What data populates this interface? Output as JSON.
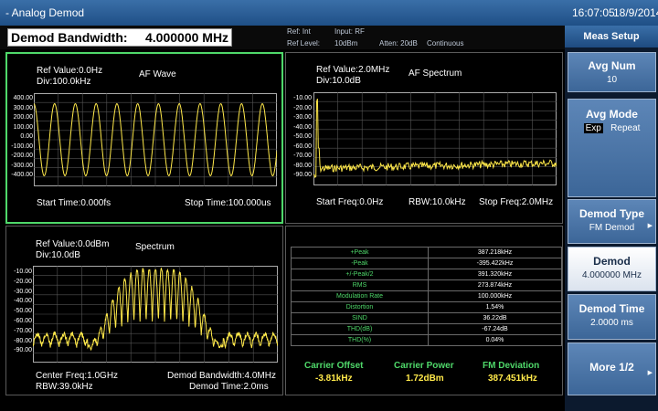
{
  "window": {
    "title": "- Analog Demod",
    "time": "16:07:05",
    "date": "18/9/2014"
  },
  "infobar": {
    "bw_label": "Demod Bandwidth:",
    "bw_value": "4.000000 MHz",
    "ref": "Ref: Int",
    "input": "Input: RF",
    "ref_level_label": "Ref Level:",
    "ref_level_value": "10dBm",
    "atten": "Atten: 20dB",
    "mode": "Continuous"
  },
  "af_wave": {
    "ref": "Ref Value:0.0Hz",
    "div": "Div:100.0kHz",
    "title": "AF Wave",
    "yticks": [
      "400.00",
      "300.00",
      "200.00",
      "100.00",
      "0.00",
      "-100.00",
      "-200.00",
      "-300.00",
      "-400.00"
    ],
    "start": "Start Time:0.000fs",
    "stop": "Stop Time:100.000us",
    "trace": {
      "amplitude_khz": 387,
      "cycles": 11.7
    }
  },
  "af_spectrum": {
    "ref": "Ref Value:2.0MHz",
    "div": "Div:10.0dB",
    "title": "AF Spectrum",
    "yticks": [
      "-10.00",
      "-20.00",
      "-30.00",
      "-40.00",
      "-50.00",
      "-60.00",
      "-70.00",
      "-80.00",
      "-90.00"
    ],
    "start": "Start Freq:0.0Hz",
    "rbw": "RBW:10.0kHz",
    "stop": "Stop Freq:2.0MHz"
  },
  "spectrum": {
    "ref": "Ref Value:0.0dBm",
    "div": "Div:10.0dB",
    "title": "Spectrum",
    "yticks": [
      "-10.00",
      "-20.00",
      "-30.00",
      "-40.00",
      "-50.00",
      "-60.00",
      "-70.00",
      "-80.00",
      "-90.00"
    ],
    "center": "Center Freq:1.0GHz",
    "rbw": "RBW:39.0kHz",
    "demod_bw": "Demod Bandwidth:4.0MHz",
    "demod_time": "Demod Time:2.0ms"
  },
  "measurements": [
    {
      "name": "+Peak",
      "value": "387.218kHz"
    },
    {
      "name": "-Peak",
      "value": "-395.422kHz"
    },
    {
      "name": "+/-Peak/2",
      "value": "391.320kHz"
    },
    {
      "name": "RMS",
      "value": "273.874kHz"
    },
    {
      "name": "Modulation Rate",
      "value": "100.000kHz"
    },
    {
      "name": "Distortion",
      "value": "1.54%"
    },
    {
      "name": "SIND",
      "value": "36.22dB"
    },
    {
      "name": "THD(dB)",
      "value": "-67.24dB"
    },
    {
      "name": "THD(%)",
      "value": "0.04%"
    }
  ],
  "summary": {
    "carrier_offset_label": "Carrier Offset",
    "carrier_offset_value": "-3.81kHz",
    "carrier_power_label": "Carrier Power",
    "carrier_power_value": "1.72dBm",
    "fm_dev_label": "FM Deviation",
    "fm_dev_value": "387.451kHz"
  },
  "menu": {
    "header": "Meas Setup",
    "avg_num_label": "Avg Num",
    "avg_num_value": "10",
    "avg_mode_label": "Avg Mode",
    "avg_mode_opt1": "Exp",
    "avg_mode_opt2": "Repeat",
    "demod_type_label": "Demod Type",
    "demod_type_value": "FM Demod",
    "demod_label": "Demod",
    "demod_value": "4.000000 MHz",
    "demod_time_label": "Demod Time",
    "demod_time_value": "2.0000 ms",
    "more_label": "More 1/2"
  },
  "colors": {
    "trace": "#ffe94a",
    "accent": "#4fd86a",
    "menu": "#3c6698",
    "grid": "#555555"
  }
}
